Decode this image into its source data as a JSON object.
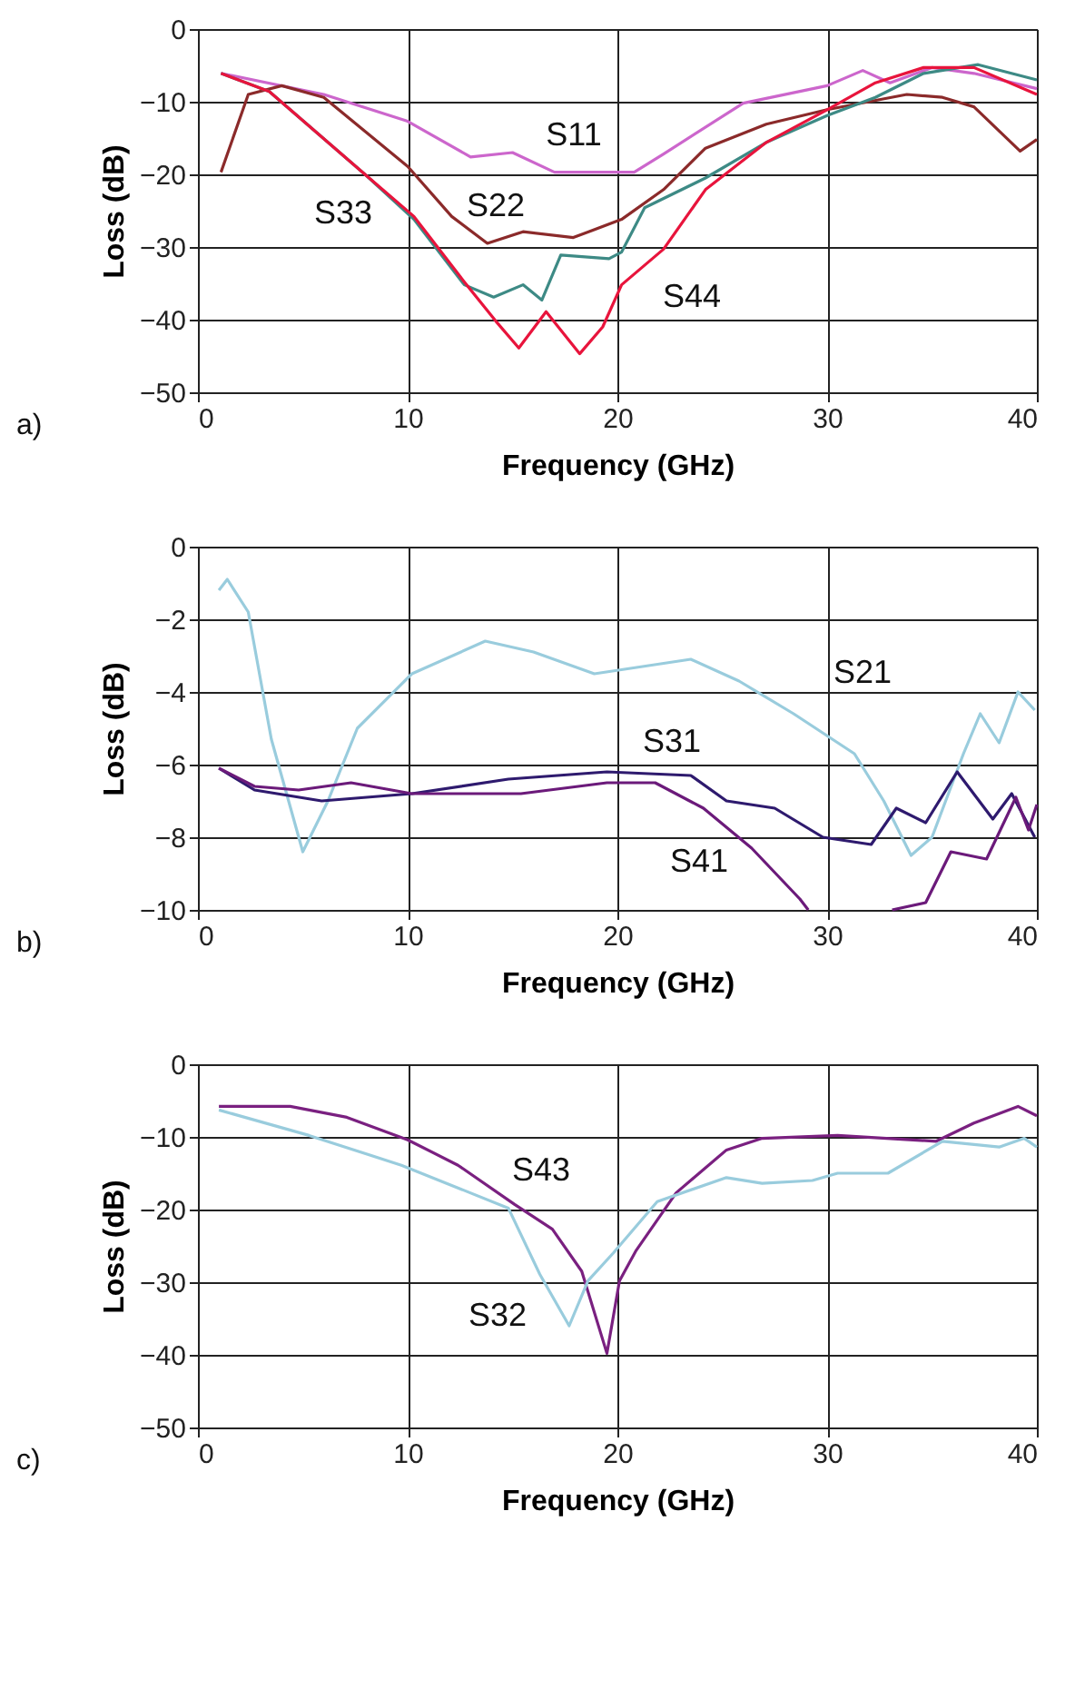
{
  "chart_data": [
    {
      "type": "line",
      "xlabel": "Frequency (GHz)",
      "ylabel": "Loss (dB)",
      "xlim": [
        0,
        40
      ],
      "xticks": [
        0,
        10,
        20,
        30,
        40
      ],
      "ylim": [
        -50,
        0
      ],
      "yticks": [
        -50,
        -40,
        -30,
        -20,
        -10,
        0
      ],
      "grid": true,
      "legend": false,
      "marker": "none",
      "line_style": "solid",
      "series": [
        {
          "color": "#cc66cc",
          "x": [
            1.1,
            6,
            10,
            13,
            15,
            17,
            20.8,
            22.2,
            26,
            30,
            31.7,
            33,
            35,
            37,
            40
          ],
          "values": [
            -6.1,
            -9,
            -12.7,
            -17.6,
            -17,
            -19.7,
            -19.7,
            -17.2,
            -10.2,
            -7.8,
            -5.7,
            -7.4,
            -5.3,
            -6.1,
            -8.2
          ]
        },
        {
          "color": "#8b2a2a",
          "x": [
            1.1,
            2.4,
            4,
            6,
            10,
            12.1,
            13.8,
            15.5,
            17.9,
            20.2,
            22.2,
            24.2,
            27.1,
            30,
            33.8,
            35.5,
            37,
            39.2,
            40
          ],
          "values": [
            -19.7,
            -9,
            -7.8,
            -9.4,
            -18.9,
            -25.8,
            -29.5,
            -27.9,
            -28.7,
            -26.2,
            -22.1,
            -16.4,
            -13.1,
            -11.1,
            -9,
            -9.4,
            -10.7,
            -16.8,
            -15.2
          ]
        },
        {
          "color": "#3d8a85",
          "x": [
            1.1,
            3.4,
            8,
            10.3,
            12.7,
            14.1,
            15.5,
            16.4,
            17.3,
            19.6,
            20.2,
            21.3,
            24.2,
            27.1,
            30,
            32.3,
            34.6,
            37.2,
            40
          ],
          "values": [
            -6.1,
            -8.6,
            -20.1,
            -26.2,
            -35.2,
            -36.9,
            -35.2,
            -37.3,
            -31.1,
            -31.6,
            -30.7,
            -24.6,
            -20.5,
            -15.6,
            -11.9,
            -9.4,
            -6.1,
            -4.9,
            -7
          ]
        },
        {
          "color": "#e8143c",
          "x": [
            1.1,
            3.4,
            8,
            10.3,
            12.7,
            14.2,
            15.3,
            16.6,
            18.2,
            19.3,
            20.2,
            22.2,
            24.2,
            27.1,
            30,
            32.3,
            34.6,
            37,
            40
          ],
          "values": [
            -6.1,
            -8.6,
            -20.1,
            -25.8,
            -34.8,
            -40.2,
            -43.9,
            -38.9,
            -44.7,
            -41,
            -35.2,
            -30.3,
            -22.1,
            -15.6,
            -11.1,
            -7.4,
            -5.3,
            -5.3,
            -9
          ]
        }
      ],
      "annotations": [
        "S11",
        "S22",
        "S33",
        "S44",
        "a)"
      ]
    },
    {
      "type": "line",
      "xlabel": "Frequency (GHz)",
      "ylabel": "Loss (dB)",
      "xlim": [
        0,
        40
      ],
      "xticks": [
        0,
        10,
        20,
        30,
        40
      ],
      "ylim": [
        -10,
        0
      ],
      "yticks": [
        -10,
        -8,
        -6,
        -4,
        -2,
        0
      ],
      "grid": true,
      "legend": false,
      "marker": "none",
      "line_style": "solid",
      "series": [
        {
          "color": "#99ccdd",
          "x": [
            1,
            1.4,
            2.4,
            3.5,
            5,
            6.2,
            7.6,
            10.2,
            13.7,
            16,
            18.9,
            21.2,
            23.5,
            25.8,
            28.4,
            31.3,
            32.7,
            34,
            35,
            36.5,
            37.3,
            38.2,
            39.1,
            39.9
          ],
          "values": [
            -1.2,
            -0.9,
            -1.8,
            -5.3,
            -8.4,
            -7,
            -5,
            -3.5,
            -2.6,
            -2.9,
            -3.5,
            -3.3,
            -3.1,
            -3.7,
            -4.6,
            -5.7,
            -7,
            -8.5,
            -8,
            -5.7,
            -4.6,
            -5.4,
            -4,
            -4.5
          ]
        },
        {
          "color": "#2e1a6e",
          "x": [
            1,
            2.7,
            5.9,
            10.2,
            14.8,
            19.5,
            23.5,
            25.2,
            27.5,
            29.8,
            32.1,
            33.3,
            34.7,
            36.2,
            37.9,
            38.8,
            39.9
          ],
          "values": [
            -6.1,
            -6.7,
            -7,
            -6.8,
            -6.4,
            -6.2,
            -6.3,
            -7,
            -7.2,
            -8,
            -8.2,
            -7.2,
            -7.6,
            -6.2,
            -7.5,
            -6.8,
            -8
          ]
        },
        {
          "color": "#6b1a7a",
          "x": [
            1,
            2.7,
            4.8,
            7.3,
            10.2,
            15.4,
            19.5,
            21.8,
            24.1,
            26.4,
            28.7,
            29.1,
            31,
            33.1,
            34.7,
            35.9,
            37.6,
            39,
            39.6,
            40
          ],
          "values": [
            -6.1,
            -6.6,
            -6.7,
            -6.5,
            -6.8,
            -6.8,
            -6.5,
            -6.5,
            -7.2,
            -8.3,
            -9.7,
            -10,
            null,
            -10,
            -9.8,
            -8.4,
            -8.6,
            -6.9,
            -7.8,
            -7.1
          ]
        }
      ],
      "annotations": [
        "S21",
        "S31",
        "S41",
        "b)"
      ]
    },
    {
      "type": "line",
      "xlabel": "Frequency (GHz)",
      "ylabel": "Loss (dB)",
      "xlim": [
        0,
        40
      ],
      "xticks": [
        0,
        10,
        20,
        30,
        40
      ],
      "ylim": [
        -50,
        0
      ],
      "yticks": [
        -50,
        -40,
        -30,
        -20,
        -10,
        0
      ],
      "grid": true,
      "legend": false,
      "marker": "none",
      "line_style": "solid",
      "series": [
        {
          "color": "#7a2080",
          "x": [
            1,
            4.4,
            7.1,
            10,
            12.4,
            15.1,
            16.9,
            18.3,
            19.5,
            20.1,
            20.9,
            22.8,
            25.2,
            26.9,
            30.5,
            35.2,
            37,
            39.1,
            40
          ],
          "values": [
            -5.8,
            -5.8,
            -7.3,
            -10.4,
            -13.9,
            -19.3,
            -22.7,
            -28.5,
            -39.8,
            -29.8,
            -25.6,
            -17.7,
            -11.8,
            -10.2,
            -9.8,
            -10.6,
            -8.1,
            -5.8,
            -7.1
          ]
        },
        {
          "color": "#99ccdd",
          "x": [
            1,
            5.3,
            9.7,
            14.8,
            16.3,
            17.7,
            18.6,
            19.8,
            21.9,
            25.2,
            26.9,
            29.3,
            30.5,
            32.9,
            35.5,
            38.2,
            39.4,
            40
          ],
          "values": [
            -6.3,
            -9.8,
            -13.9,
            -19.8,
            -28.9,
            -36,
            -29.8,
            -26,
            -18.9,
            -15.6,
            -16.4,
            -16,
            -15,
            -15,
            -10.6,
            -11.4,
            -10.2,
            -11.4
          ]
        }
      ],
      "annotations": [
        "S43",
        "S32",
        "c)"
      ]
    }
  ]
}
